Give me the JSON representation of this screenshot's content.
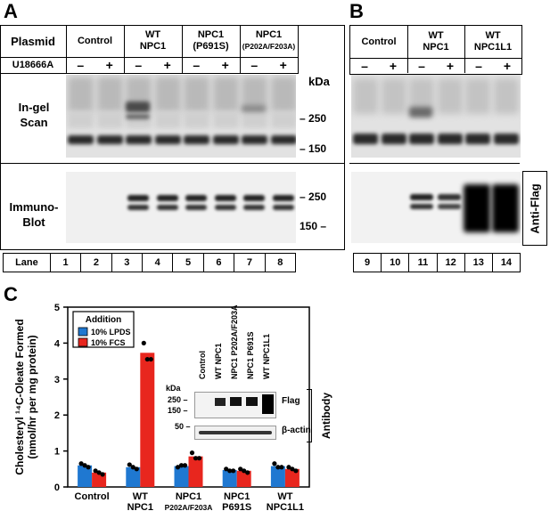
{
  "panels": {
    "a": "A",
    "b": "B",
    "c": "C"
  },
  "panel_a": {
    "header": {
      "plasmid": "Plasmid",
      "groups": [
        {
          "line1": "Control",
          "line2": ""
        },
        {
          "line1": "WT",
          "line2": "NPC1"
        },
        {
          "line1": "NPC1",
          "line2": "(P691S)"
        },
        {
          "line1": "NPC1",
          "line2": "(P202A/F203A)"
        }
      ],
      "u18666a": "U18666A",
      "signs": [
        "–",
        "+",
        "–",
        "+",
        "–",
        "+",
        "–",
        "+"
      ]
    },
    "ingel_label_1": "In-gel",
    "ingel_label_2": "Scan",
    "immuno_label_1": "Immuno-",
    "immuno_label_2": "Blot",
    "kda": "kDa",
    "ticks_top": [
      "250",
      "150"
    ],
    "ticks_bottom": [
      "250",
      "150"
    ],
    "lane_label": "Lane",
    "lanes": [
      "1",
      "2",
      "3",
      "4",
      "5",
      "6",
      "7",
      "8"
    ]
  },
  "panel_b": {
    "header": {
      "groups": [
        {
          "line1": "Control",
          "line2": ""
        },
        {
          "line1": "WT",
          "line2": "NPC1"
        },
        {
          "line1": "WT",
          "line2": "NPC1L1"
        }
      ],
      "signs": [
        "–",
        "+",
        "–",
        "+",
        "–",
        "+"
      ]
    },
    "anti_flag": "Anti-Flag",
    "lanes": [
      "9",
      "10",
      "11",
      "12",
      "13",
      "14"
    ]
  },
  "panel_c": {
    "ylabel_1": "Cholesteryl ¹⁴C-Oleate Formed",
    "ylabel_2": "(nmol/hr per mg protein)",
    "legend_title": "Addition",
    "legend": [
      {
        "label": "10% LPDS",
        "color": "#1f78d1"
      },
      {
        "label": "10% FCS",
        "color": "#e8261e"
      }
    ],
    "groups": [
      {
        "line1": "Control",
        "line2": ""
      },
      {
        "line1": "WT",
        "line2": "NPC1"
      },
      {
        "line1": "NPC1",
        "line2": "P202A/F203A"
      },
      {
        "line1": "NPC1",
        "line2": "P691S"
      },
      {
        "line1": "WT",
        "line2": "NPC1L1"
      }
    ],
    "inset": {
      "lanes": [
        "Control",
        "WT NPC1",
        "NPC1 P202A/F203A",
        "NPC1 P691S",
        "WT NPC1L1"
      ],
      "kda": "kDa",
      "flag": "Flag",
      "actin": "β-actin",
      "antibody": "Antibody",
      "ticks": [
        "250",
        "150",
        "50"
      ]
    }
  },
  "chart_data": {
    "type": "bar",
    "categories": [
      "Control",
      "WT NPC1",
      "NPC1 P202A/F203A",
      "NPC1 P691S",
      "WT NPC1L1"
    ],
    "series": [
      {
        "name": "10% LPDS",
        "values": [
          0.6,
          0.55,
          0.58,
          0.47,
          0.58
        ],
        "points": [
          [
            0.65,
            0.55,
            0.6
          ],
          [
            0.62,
            0.5,
            0.55
          ],
          [
            0.55,
            0.6,
            0.6
          ],
          [
            0.5,
            0.45,
            0.45
          ],
          [
            0.65,
            0.55,
            0.55
          ]
        ]
      },
      {
        "name": "10% FCS",
        "values": [
          0.4,
          3.73,
          0.85,
          0.45,
          0.5
        ],
        "points": [
          [
            0.45,
            0.35,
            0.4
          ],
          [
            4.0,
            3.55,
            3.55
          ],
          [
            0.95,
            0.8,
            0.8
          ],
          [
            0.5,
            0.4,
            0.45
          ],
          [
            0.55,
            0.45,
            0.5
          ]
        ]
      }
    ],
    "yticks": [
      "0",
      "1",
      "2",
      "3",
      "4",
      "5"
    ],
    "ylim": [
      0,
      5
    ],
    "colors": [
      "#1f78d1",
      "#e8261e"
    ]
  }
}
